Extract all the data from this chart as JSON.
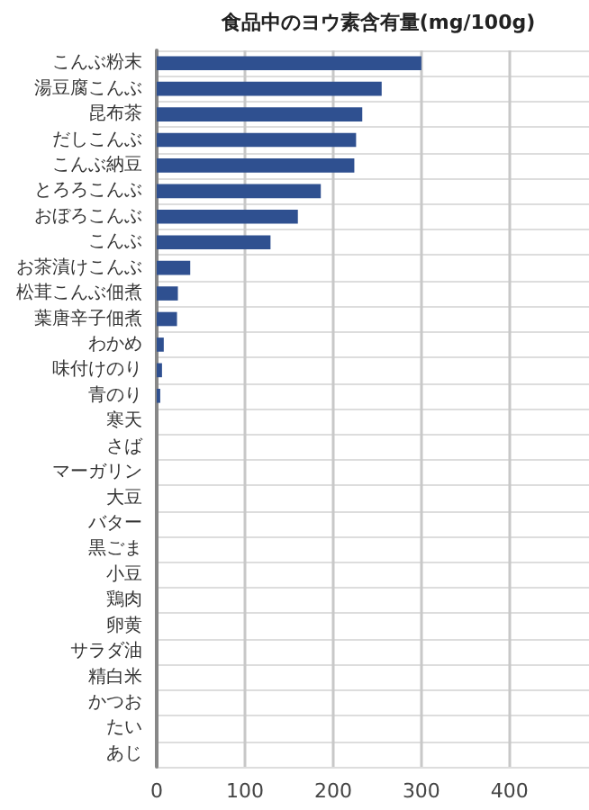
{
  "chart_data": {
    "type": "bar",
    "orientation": "horizontal",
    "title": "食品中のヨウ素含有量(mg/100g)",
    "categories": [
      "こんぶ粉末",
      "湯豆腐こんぶ",
      "昆布茶",
      "だしこんぶ",
      "こんぶ納豆",
      "とろろこんぶ",
      "おぼろこんぶ",
      "こんぶ",
      "お茶漬けこんぶ",
      "松茸こんぶ佃煮",
      "葉唐辛子佃煮",
      "わかめ",
      "味付けのり",
      "青のり",
      "寒天",
      "さば",
      "マーガリン",
      "大豆",
      "バター",
      "黒ごま",
      "小豆",
      "鶏肉",
      "卵黄",
      "サラダ油",
      "精白米",
      "かつお",
      "たい",
      "あじ"
    ],
    "values": [
      300,
      255,
      233,
      226,
      224,
      186,
      160,
      129,
      38,
      24,
      23,
      8,
      6,
      4,
      0,
      0,
      0,
      0,
      0,
      0,
      0,
      0,
      0,
      0,
      0,
      0,
      0,
      0
    ],
    "color": "#2f5090",
    "xlim": [
      0,
      490
    ],
    "xticks": [
      0,
      100,
      200,
      300,
      400
    ],
    "grid": true
  }
}
